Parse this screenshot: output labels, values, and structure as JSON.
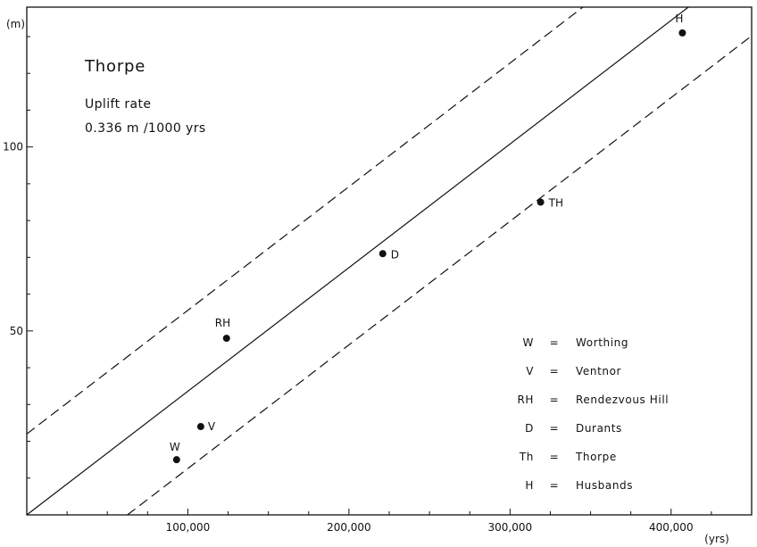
{
  "chart_data": {
    "type": "scatter",
    "title": "Thorpe",
    "subtitle_lines": [
      "Uplift rate",
      "0.336 m /1000 yrs"
    ],
    "xlabel": "(yrs)",
    "ylabel": "(m)",
    "xlim": [
      0,
      450000
    ],
    "ylim": [
      0,
      138
    ],
    "x_ticks": [
      100000,
      200000,
      300000,
      400000
    ],
    "x_tick_labels": [
      "100,000",
      "200,000",
      "300,000",
      "400,000"
    ],
    "x_minor_step": 25000,
    "y_ticks": [
      50,
      100
    ],
    "y_tick_labels": [
      "50",
      "100"
    ],
    "y_minor_step": 10,
    "grid": false,
    "points": [
      {
        "label": "W",
        "x": 93000,
        "y": 15
      },
      {
        "label": "V",
        "x": 108000,
        "y": 24
      },
      {
        "label": "RH",
        "x": 124000,
        "y": 48
      },
      {
        "label": "D",
        "x": 221000,
        "y": 71
      },
      {
        "label": "TH",
        "x": 319000,
        "y": 85
      },
      {
        "label": "H",
        "x": 407000,
        "y": 131
      }
    ],
    "lines": [
      {
        "style": "solid",
        "slope": 0.000336,
        "intercept": 0
      },
      {
        "style": "dashed",
        "slope": 0.000336,
        "intercept": 22
      },
      {
        "style": "dashed",
        "slope": 0.000336,
        "intercept": -21
      }
    ],
    "legend": {
      "placement": "bottom-right",
      "entries": [
        {
          "abbr": "W",
          "name": "Worthing"
        },
        {
          "abbr": "V",
          "name": "Ventnor"
        },
        {
          "abbr": "RH",
          "name": "Rendezvous Hill"
        },
        {
          "abbr": "D",
          "name": "Durants"
        },
        {
          "abbr": "Th",
          "name": "Thorpe"
        },
        {
          "abbr": "H",
          "name": "Husbands"
        }
      ]
    }
  }
}
